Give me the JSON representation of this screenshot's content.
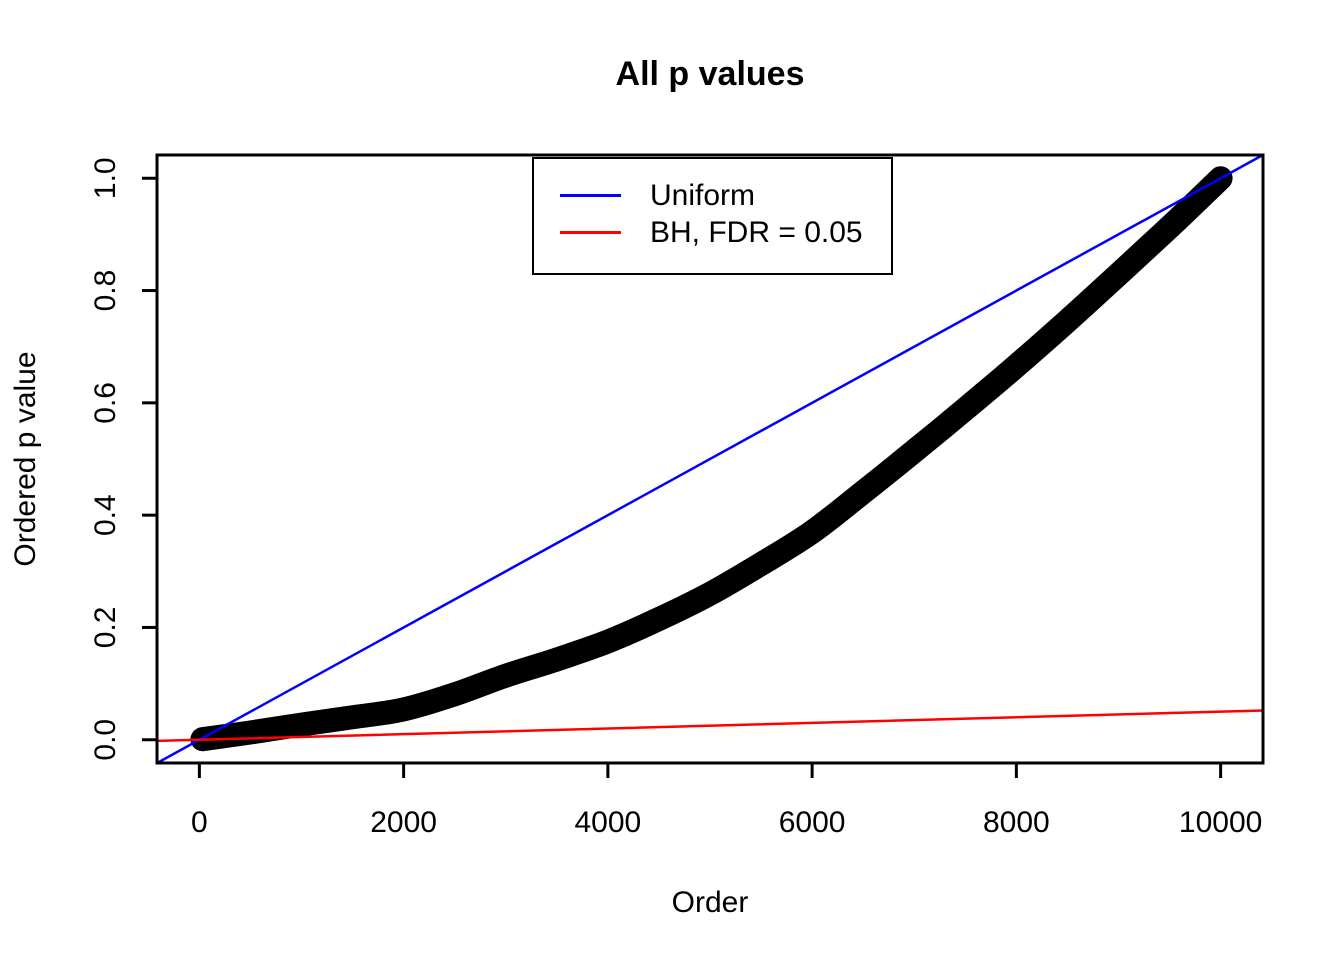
{
  "figure": {
    "background": "#ffffff",
    "axis_color": "#000000"
  },
  "chart_data": {
    "type": "scatter",
    "title": "All p values",
    "xlabel": "Order",
    "ylabel": "Ordered p value",
    "xlim": [
      -415,
      10415
    ],
    "ylim": [
      -0.0414,
      1.0414
    ],
    "x_ticks": [
      0,
      2000,
      4000,
      6000,
      8000,
      10000
    ],
    "x_tick_labels": [
      "0",
      "2000",
      "4000",
      "6000",
      "8000",
      "10000"
    ],
    "y_ticks": [
      0.0,
      0.2,
      0.4,
      0.6,
      0.8,
      1.0
    ],
    "y_tick_labels": [
      "0.0",
      "0.2",
      "0.4",
      "0.6",
      "0.8",
      "1.0"
    ],
    "grid": false,
    "legend": {
      "position": "top-center",
      "entries": [
        {
          "label": "Uniform",
          "color": "#0000ff"
        },
        {
          "label": "BH, FDR = 0.05",
          "color": "#ff0000"
        }
      ]
    },
    "series": [
      {
        "name": "ordered-p-values",
        "kind": "curve",
        "color": "#000000",
        "stroke_width": 24,
        "x": [
          30,
          500,
          1000,
          1500,
          2000,
          2500,
          3000,
          3500,
          4000,
          4500,
          5000,
          5500,
          6000,
          6500,
          7000,
          7500,
          8000,
          8500,
          9000,
          9500,
          10000
        ],
        "y": [
          0.001,
          0.013,
          0.027,
          0.04,
          0.054,
          0.081,
          0.114,
          0.143,
          0.175,
          0.215,
          0.26,
          0.313,
          0.37,
          0.441,
          0.514,
          0.589,
          0.666,
          0.746,
          0.829,
          0.913,
          1.0
        ]
      },
      {
        "name": "Uniform",
        "kind": "line",
        "color": "#0000ff",
        "stroke_width": 2.5,
        "x": [
          -415,
          10415
        ],
        "y": [
          -0.0415,
          1.0415
        ]
      },
      {
        "name": "BH, FDR = 0.05",
        "kind": "line",
        "color": "#ff0000",
        "stroke_width": 2.5,
        "x": [
          -415,
          10415
        ],
        "y": [
          -0.002075,
          0.052075
        ]
      }
    ]
  }
}
